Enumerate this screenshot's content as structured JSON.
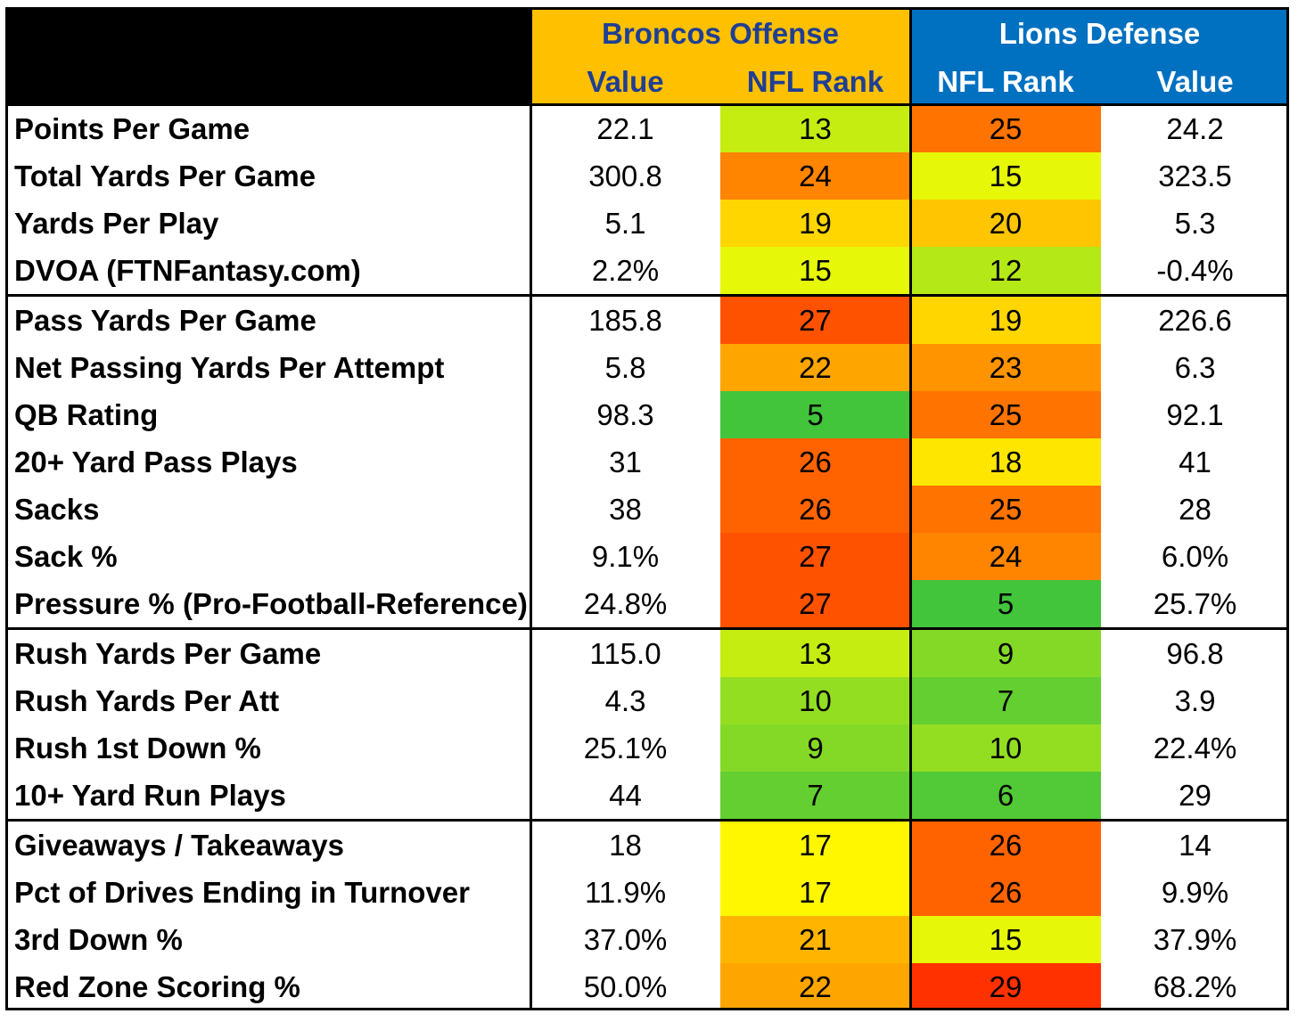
{
  "chart_data": {
    "type": "table",
    "colors": {
      "broncos_header": "#ffc000",
      "lions_header": "#0070c0",
      "corner": "#000000"
    },
    "groups": [
      "Broncos Offense",
      "Lions Defense"
    ],
    "columns": [
      "Value",
      "NFL Rank",
      "NFL Rank",
      "Value"
    ],
    "sections": [
      {
        "rows": [
          {
            "label": "Points Per Game",
            "off_value": "22.1",
            "off_rank": 13,
            "def_rank": 25,
            "def_value": "24.2"
          },
          {
            "label": "Total Yards Per Game",
            "off_value": "300.8",
            "off_rank": 24,
            "def_rank": 15,
            "def_value": "323.5"
          },
          {
            "label": "Yards Per Play",
            "off_value": "5.1",
            "off_rank": 19,
            "def_rank": 20,
            "def_value": "5.3"
          },
          {
            "label": "DVOA (FTNFantasy.com)",
            "off_value": "2.2%",
            "off_rank": 15,
            "def_rank": 12,
            "def_value": "-0.4%"
          }
        ]
      },
      {
        "rows": [
          {
            "label": "Pass Yards Per Game",
            "off_value": "185.8",
            "off_rank": 27,
            "def_rank": 19,
            "def_value": "226.6"
          },
          {
            "label": "Net Passing Yards Per Attempt",
            "off_value": "5.8",
            "off_rank": 22,
            "def_rank": 23,
            "def_value": "6.3"
          },
          {
            "label": "QB Rating",
            "off_value": "98.3",
            "off_rank": 5,
            "def_rank": 25,
            "def_value": "92.1"
          },
          {
            "label": "20+ Yard Pass Plays",
            "off_value": "31",
            "off_rank": 26,
            "def_rank": 18,
            "def_value": "41"
          },
          {
            "label": "Sacks",
            "off_value": "38",
            "off_rank": 26,
            "def_rank": 25,
            "def_value": "28"
          },
          {
            "label": "Sack %",
            "off_value": "9.1%",
            "off_rank": 27,
            "def_rank": 24,
            "def_value": "6.0%"
          },
          {
            "label": "Pressure % (Pro-Football-Reference)",
            "off_value": "24.8%",
            "off_rank": 27,
            "def_rank": 5,
            "def_value": "25.7%"
          }
        ]
      },
      {
        "rows": [
          {
            "label": "Rush Yards Per Game",
            "off_value": "115.0",
            "off_rank": 13,
            "def_rank": 9,
            "def_value": "96.8"
          },
          {
            "label": "Rush Yards Per Att",
            "off_value": "4.3",
            "off_rank": 10,
            "def_rank": 7,
            "def_value": "3.9"
          },
          {
            "label": "Rush 1st Down %",
            "off_value": "25.1%",
            "off_rank": 9,
            "def_rank": 10,
            "def_value": "22.4%"
          },
          {
            "label": "10+ Yard Run Plays",
            "off_value": "44",
            "off_rank": 7,
            "def_rank": 6,
            "def_value": "29"
          }
        ]
      },
      {
        "rows": [
          {
            "label": "Giveaways / Takeaways",
            "off_value": "18",
            "off_rank": 17,
            "def_rank": 26,
            "def_value": "14"
          },
          {
            "label": "Pct of Drives Ending in Turnover",
            "off_value": "11.9%",
            "off_rank": 17,
            "def_rank": 26,
            "def_value": "9.9%"
          },
          {
            "label": "3rd Down %",
            "off_value": "37.0%",
            "off_rank": 21,
            "def_rank": 15,
            "def_value": "37.9%"
          },
          {
            "label": "Red Zone Scoring %",
            "off_value": "50.0%",
            "off_rank": 22,
            "def_rank": 29,
            "def_value": "68.2%"
          }
        ]
      }
    ]
  }
}
